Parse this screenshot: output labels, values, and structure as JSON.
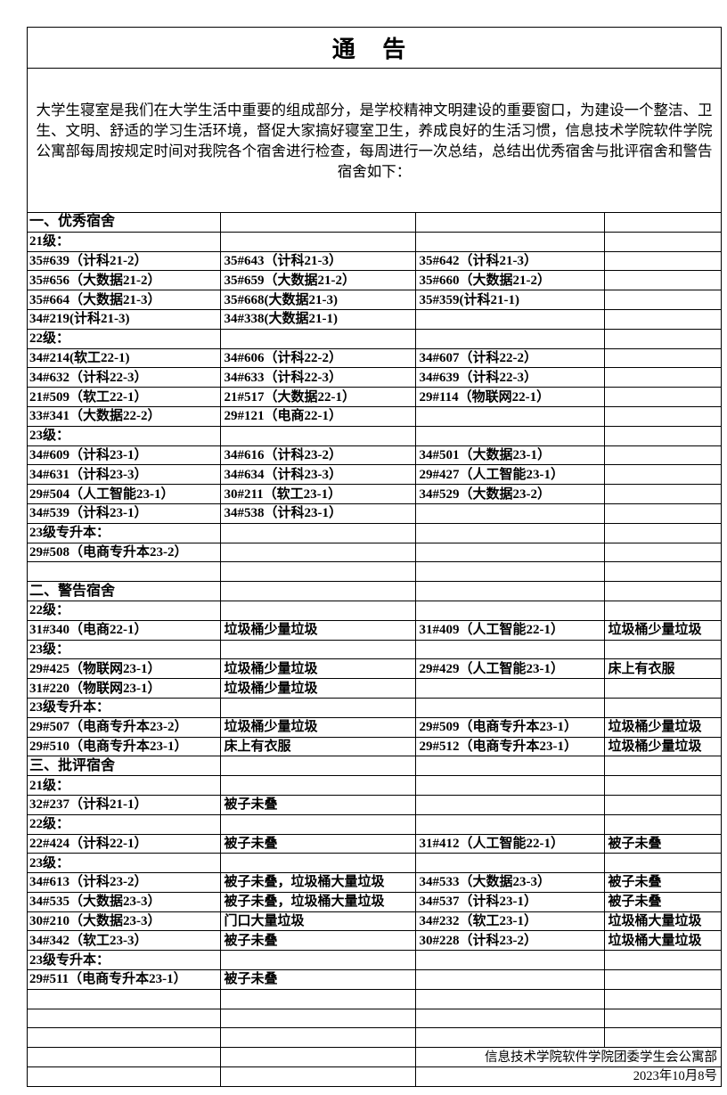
{
  "title": "通 告",
  "intro": "大学生寝室是我们在大学生活中重要的组成部分，是学校精神文明建设的重要窗口，为建设一个整洁、卫生、文明、舒适的学习生活环境，督促大家搞好寝室卫生，养成良好的生活习惯，信息技术学院软件学院公寓部每周按规定时间对我院各个宿舍进行检查，每周进行一次总结，总结出优秀宿舍与批评宿舍和警告宿舍如下：",
  "rows": [
    {
      "type": "sec",
      "cells": [
        "一、优秀宿舍",
        "",
        "",
        ""
      ]
    },
    {
      "type": "label",
      "cells": [
        "21级：",
        "",
        "",
        ""
      ]
    },
    {
      "cells": [
        "35#639（计科21-2）",
        "35#643（计科21-3）",
        "35#642（计科21-3）",
        ""
      ]
    },
    {
      "cells": [
        "35#656（大数据21-2）",
        "35#659（大数据21-2）",
        "35#660（大数据21-2）",
        ""
      ]
    },
    {
      "cells": [
        "35#664（大数据21-3）",
        "35#668(大数据21-3)",
        "35#359(计科21-1)",
        ""
      ]
    },
    {
      "cells": [
        "34#219(计科21-3)",
        "34#338(大数据21-1)",
        "",
        ""
      ]
    },
    {
      "type": "label",
      "cells": [
        "22级：",
        "",
        "",
        ""
      ]
    },
    {
      "cells": [
        "34#214(软工22-1)",
        "34#606（计科22-2）",
        "34#607（计科22-2）",
        ""
      ]
    },
    {
      "cells": [
        "34#632（计科22-3）",
        "34#633（计科22-3）",
        "34#639（计科22-3）",
        ""
      ]
    },
    {
      "cells": [
        "21#509（软工22-1）",
        "21#517（大数据22-1）",
        "29#114（物联网22-1）",
        ""
      ]
    },
    {
      "cells": [
        "33#341（大数据22-2）",
        "29#121（电商22-1）",
        "",
        ""
      ]
    },
    {
      "type": "label",
      "cells": [
        "23级：",
        "",
        "",
        ""
      ]
    },
    {
      "cells": [
        "34#609（计科23-1）",
        "34#616（计科23-2）",
        "34#501（大数据23-1）",
        ""
      ]
    },
    {
      "cells": [
        "34#631（计科23-3）",
        "34#634（计科23-3）",
        "29#427（人工智能23-1）",
        ""
      ]
    },
    {
      "cells": [
        "29#504（人工智能23-1）",
        "30#211（软工23-1）",
        "34#529（大数据23-2）",
        ""
      ]
    },
    {
      "cells": [
        "34#539（计科23-1）",
        "34#538（计科23-1）",
        "",
        ""
      ]
    },
    {
      "type": "label",
      "cells": [
        "23级专升本：",
        "",
        "",
        ""
      ]
    },
    {
      "cells": [
        "29#508（电商专升本23-2）",
        "",
        "",
        ""
      ]
    },
    {
      "cells": [
        "",
        "",
        "",
        ""
      ]
    },
    {
      "type": "sec",
      "cells": [
        "二、警告宿舍",
        "",
        "",
        ""
      ]
    },
    {
      "type": "label",
      "cells": [
        "22级：",
        "",
        "",
        ""
      ]
    },
    {
      "cells": [
        "31#340（电商22-1）",
        "垃圾桶少量垃圾",
        "31#409（人工智能22-1）",
        "垃圾桶少量垃圾"
      ]
    },
    {
      "type": "label",
      "cells": [
        "23级：",
        "",
        "",
        ""
      ]
    },
    {
      "cells": [
        "29#425（物联网23-1）",
        "垃圾桶少量垃圾",
        "29#429（人工智能23-1）",
        "床上有衣服"
      ]
    },
    {
      "cells": [
        "31#220（物联网23-1）",
        "垃圾桶少量垃圾",
        "",
        ""
      ]
    },
    {
      "type": "label",
      "cells": [
        "23级专升本：",
        "",
        "",
        ""
      ]
    },
    {
      "cells": [
        "29#507（电商专升本23-2）",
        "垃圾桶少量垃圾",
        "29#509（电商专升本23-1）",
        "垃圾桶少量垃圾"
      ]
    },
    {
      "cells": [
        "29#510（电商专升本23-1）",
        "床上有衣服",
        "29#512（电商专升本23-1）",
        "垃圾桶少量垃圾"
      ]
    },
    {
      "type": "sec",
      "cells": [
        "三、批评宿舍",
        "",
        "",
        ""
      ]
    },
    {
      "type": "label",
      "cells": [
        "21级：",
        "",
        "",
        ""
      ]
    },
    {
      "cells": [
        "32#237（计科21-1）",
        "被子未叠",
        "",
        ""
      ]
    },
    {
      "type": "label",
      "cells": [
        "22级：",
        "",
        "",
        ""
      ]
    },
    {
      "cells": [
        "22#424（计科22-1）",
        "被子未叠",
        "31#412（人工智能22-1）",
        "被子未叠"
      ]
    },
    {
      "type": "label",
      "cells": [
        "23级：",
        "",
        "",
        ""
      ]
    },
    {
      "cells": [
        "34#613（计科23-2）",
        "被子未叠，垃圾桶大量垃圾",
        "34#533（大数据23-3）",
        "被子未叠"
      ]
    },
    {
      "cells": [
        "34#535（大数据23-3）",
        "被子未叠，垃圾桶大量垃圾",
        "34#537（计科23-1）",
        "被子未叠"
      ]
    },
    {
      "cells": [
        "30#210（大数据23-3）",
        "门口大量垃圾",
        "34#232（软工23-1）",
        "垃圾桶大量垃圾"
      ]
    },
    {
      "cells": [
        "34#342（软工23-3）",
        "被子未叠",
        "30#228（计科23-2）",
        "垃圾桶大量垃圾"
      ]
    },
    {
      "type": "label",
      "cells": [
        "23级专升本：",
        "",
        "",
        ""
      ]
    },
    {
      "cells": [
        "29#511（电商专升本23-1）",
        "被子未叠",
        "",
        ""
      ]
    },
    {
      "cells": [
        "",
        "",
        "",
        ""
      ]
    },
    {
      "cells": [
        "",
        "",
        "",
        ""
      ]
    },
    {
      "cells": [
        "",
        "",
        "",
        ""
      ]
    }
  ],
  "signature": {
    "org": "信息技术学院软件学院团委学生会公寓部",
    "date": "2023年10月8号"
  }
}
